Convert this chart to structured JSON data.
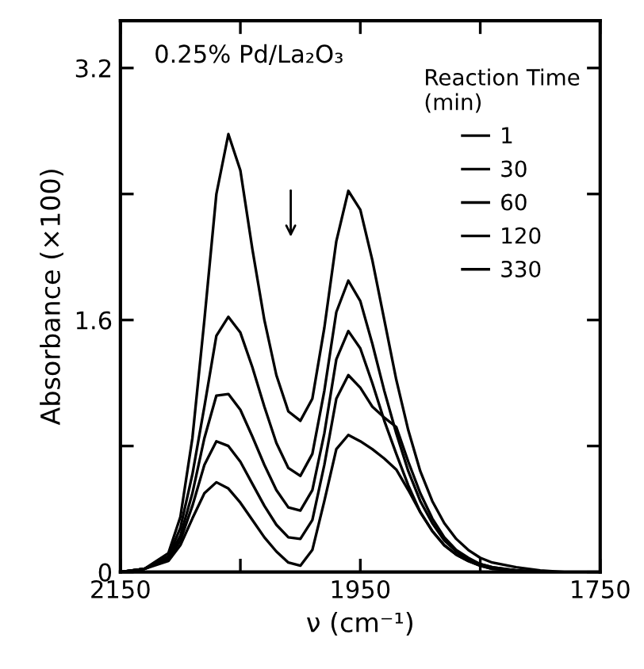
{
  "chart_data": {
    "type": "line",
    "title": "0.25% Pd/La₂O₃",
    "xlabel": "ν (cm⁻¹)",
    "ylabel": "Absorbance (×100)",
    "legend_title": "Reaction Time\n(min)",
    "legend": "right",
    "x": [
      2150,
      2130,
      2110,
      2100,
      2090,
      2080,
      2070,
      2060,
      2050,
      2040,
      2030,
      2020,
      2010,
      2000,
      1990,
      1980,
      1970,
      1960,
      1950,
      1940,
      1930,
      1920,
      1910,
      1900,
      1890,
      1880,
      1870,
      1860,
      1850,
      1840,
      1820,
      1800,
      1780,
      1760,
      1750
    ],
    "series": [
      {
        "name": "1",
        "color": "#000000",
        "values": [
          0,
          0.02,
          0.12,
          0.35,
          0.85,
          1.6,
          2.4,
          2.78,
          2.55,
          2.05,
          1.6,
          1.25,
          1.02,
          0.96,
          1.1,
          1.55,
          2.1,
          2.42,
          2.3,
          1.98,
          1.6,
          1.22,
          0.9,
          0.64,
          0.45,
          0.31,
          0.21,
          0.14,
          0.09,
          0.06,
          0.03,
          0.01,
          0,
          0,
          0
        ]
      },
      {
        "name": "30",
        "color": "#000000",
        "values": [
          0,
          0.02,
          0.1,
          0.28,
          0.62,
          1.05,
          1.5,
          1.62,
          1.52,
          1.3,
          1.05,
          0.82,
          0.66,
          0.61,
          0.75,
          1.15,
          1.65,
          1.85,
          1.72,
          1.45,
          1.15,
          0.88,
          0.64,
          0.45,
          0.31,
          0.2,
          0.13,
          0.08,
          0.05,
          0.03,
          0.01,
          0,
          0,
          0,
          0
        ]
      },
      {
        "name": "60",
        "color": "#000000",
        "values": [
          0,
          0.02,
          0.09,
          0.23,
          0.5,
          0.85,
          1.12,
          1.13,
          1.03,
          0.86,
          0.68,
          0.52,
          0.41,
          0.39,
          0.52,
          0.88,
          1.35,
          1.53,
          1.42,
          1.2,
          0.96,
          0.75,
          0.55,
          0.38,
          0.26,
          0.17,
          0.11,
          0.07,
          0.04,
          0.02,
          0.01,
          0,
          0,
          0,
          0
        ]
      },
      {
        "name": "120",
        "color": "#000000",
        "values": [
          0,
          0.02,
          0.08,
          0.2,
          0.42,
          0.68,
          0.83,
          0.8,
          0.7,
          0.56,
          0.42,
          0.3,
          0.22,
          0.21,
          0.33,
          0.68,
          1.1,
          1.25,
          1.17,
          1.05,
          0.98,
          0.92,
          0.7,
          0.5,
          0.34,
          0.22,
          0.14,
          0.09,
          0.05,
          0.03,
          0.01,
          0,
          0,
          0,
          0
        ]
      },
      {
        "name": "330",
        "color": "#000000",
        "values": [
          0,
          0.02,
          0.07,
          0.17,
          0.34,
          0.5,
          0.57,
          0.53,
          0.44,
          0.33,
          0.22,
          0.13,
          0.06,
          0.04,
          0.14,
          0.45,
          0.78,
          0.87,
          0.83,
          0.78,
          0.72,
          0.65,
          0.52,
          0.38,
          0.26,
          0.17,
          0.11,
          0.07,
          0.04,
          0.02,
          0.01,
          0,
          0,
          0,
          0
        ]
      }
    ],
    "xlim": [
      2150,
      1750
    ],
    "xticks": [
      2150,
      {
        "value": 2050,
        "label": null
      },
      1950,
      {
        "value": 1850,
        "label": null
      },
      1750
    ],
    "ylim": [
      0,
      3.5
    ],
    "yticks": [
      0,
      {
        "value": 0.8,
        "label": null
      },
      1.6,
      {
        "value": 2.4,
        "label": null
      },
      3.2
    ],
    "grid": false,
    "line_style": "solid",
    "marker": "none"
  }
}
